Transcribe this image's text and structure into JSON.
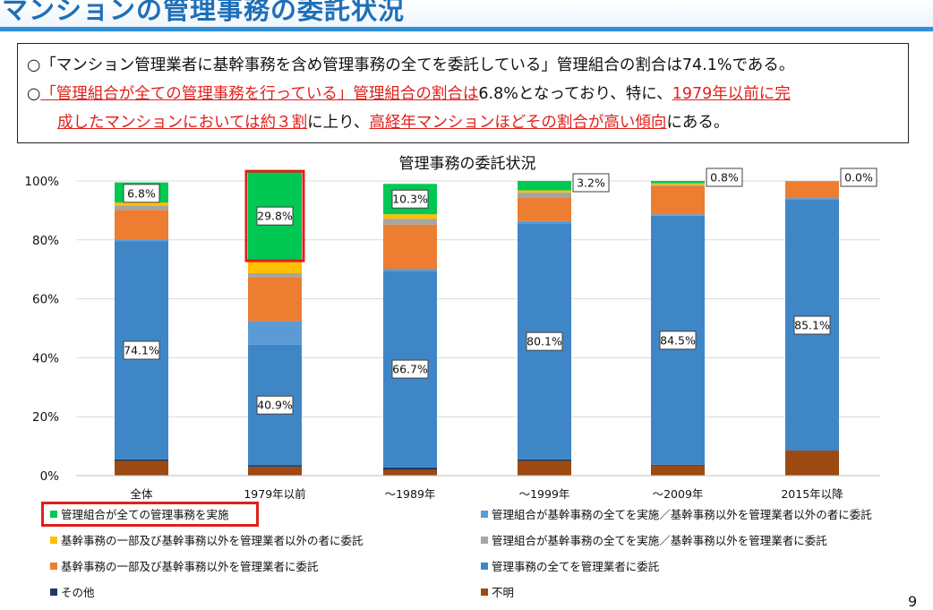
{
  "slide": {
    "title": "マンションの管理事務の委託状況",
    "page_number": "9"
  },
  "summary": {
    "line1": "○「マンション管理業者に基幹事務を含め管理事務の全てを委託している」管理組合の割合は74.1%である。",
    "line2_a": "○",
    "line2_b": "「管理組合が全ての管理事務を行っている」管理組合の割合は",
    "line2_c": "6.8%となっており、特に、",
    "line2_d": "1979年以前に完",
    "line3_a": "成したマンションにおいては約３割",
    "line3_b": "に上り、",
    "line3_c": "高経年マンションほどその割合が高い傾向",
    "line3_d": "にある。"
  },
  "chart_data": {
    "type": "bar",
    "stacked": true,
    "title": "管理事務の委託状況",
    "categories": [
      "全体",
      "1979年以前",
      "～1989年",
      "～1999年",
      "～2009年",
      "2015年以降"
    ],
    "y_ticks": [
      "0%",
      "20%",
      "40%",
      "60%",
      "80%",
      "100%"
    ],
    "ylim": [
      0,
      100
    ],
    "grid": true,
    "series": [
      {
        "name": "不明",
        "color": "#9c4a12",
        "values": [
          5.0,
          3.0,
          2.0,
          5.0,
          3.5,
          8.5
        ]
      },
      {
        "name": "その他",
        "color": "#1f3864",
        "values": [
          0.5,
          0.5,
          0.8,
          0.5,
          0.2,
          0.0
        ]
      },
      {
        "name": "管理事務の全てを管理業者に委託",
        "color": "#3f86c7",
        "values": [
          74.1,
          40.9,
          66.7,
          80.1,
          84.5,
          85.1
        ]
      },
      {
        "name": "管理組合が基幹事務の全てを実施／基幹事務以外を管理業者以外の者に委託",
        "color": "#5b9bd5",
        "values": [
          0.6,
          8.0,
          0.7,
          0.8,
          0.5,
          0.6
        ]
      },
      {
        "name": "基幹事務の一部及び基幹事務以外を管理業者に委託",
        "color": "#ed7d31",
        "values": [
          10.0,
          15.0,
          15.0,
          8.0,
          9.5,
          5.5
        ]
      },
      {
        "name": "管理組合が基幹事務の全てを実施／基幹事務以外を管理業者に委託",
        "color": "#a5a5a5",
        "values": [
          1.5,
          1.3,
          2.0,
          1.7,
          0.5,
          0.3
        ]
      },
      {
        "name": "基幹事務の一部及び基幹事務以外を管理業者以外の者に委託",
        "color": "#ffc000",
        "values": [
          1.0,
          4.5,
          1.5,
          0.7,
          0.5,
          0.0
        ]
      },
      {
        "name": "管理組合が全ての管理事務を実施",
        "color": "#00c853",
        "values": [
          6.8,
          29.8,
          10.3,
          3.2,
          0.8,
          0.0
        ]
      }
    ],
    "data_labels": [
      {
        "series": "管理組合が全ての管理事務を実施",
        "labels": [
          "6.8%",
          "29.8%",
          "10.3%",
          "3.2%",
          "0.8%",
          "0.0%"
        ]
      },
      {
        "series": "管理事務の全てを管理業者に委託",
        "labels": [
          "74.1%",
          "40.9%",
          "66.7%",
          "80.1%",
          "84.5%",
          "85.1%"
        ]
      }
    ],
    "highlighted": [
      "1979年以前: 管理組合が全ての管理事務を実施"
    ]
  },
  "legend": [
    {
      "label": "管理組合が全ての管理事務を実施",
      "color": "#00c853"
    },
    {
      "label": "管理組合が基幹事務の全てを実施／基幹事務以外を管理業者以外の者に委託",
      "color": "#5b9bd5"
    },
    {
      "label": "基幹事務の一部及び基幹事務以外を管理業者以外の者に委託",
      "color": "#ffc000"
    },
    {
      "label": "管理組合が基幹事務の全てを実施／基幹事務以外を管理業者に委託",
      "color": "#a5a5a5"
    },
    {
      "label": "基幹事務の一部及び基幹事務以外を管理業者に委託",
      "color": "#ed7d31"
    },
    {
      "label": "管理事務の全てを管理業者に委託",
      "color": "#3f86c7"
    },
    {
      "label": "その他",
      "color": "#1f3864"
    },
    {
      "label": "不明",
      "color": "#9c4a12"
    }
  ]
}
